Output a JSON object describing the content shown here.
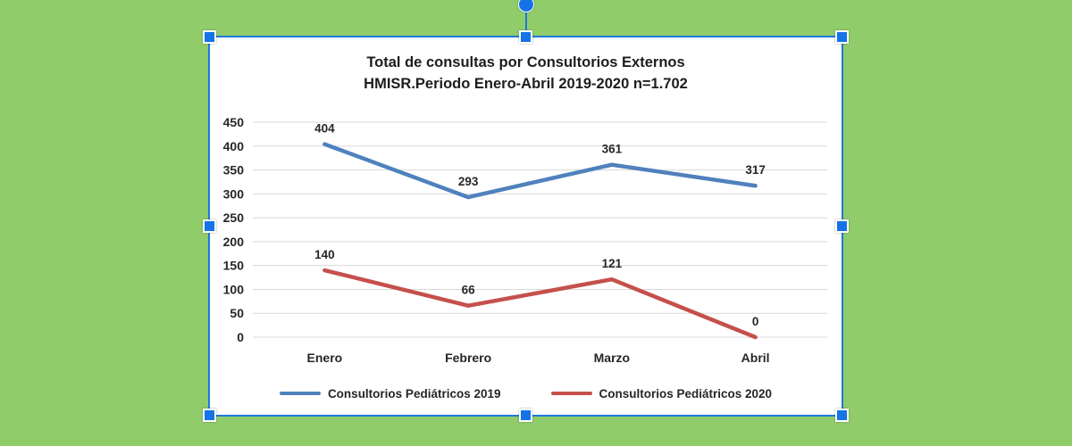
{
  "canvas": {
    "background": "#90CC69"
  },
  "selection": {
    "border_color": "#1F78DC",
    "handle_color": "#1473E6"
  },
  "chart": {
    "title_line1": "Total de consultas por Consultorios Externos",
    "title_line2": "HMISR.Periodo Enero-Abril 2019-2020 n=1.702"
  },
  "chart_data": {
    "type": "line",
    "title": "Total de consultas por Consultorios Externos HMISR.Periodo Enero-Abril 2019-2020 n=1.702",
    "categories": [
      "Enero",
      "Febrero",
      "Marzo",
      "Abril"
    ],
    "series": [
      {
        "name": "Consultorios Pediátricos 2019",
        "color": "#4F81BD",
        "values": [
          404,
          293,
          361,
          317
        ]
      },
      {
        "name": "Consultorios Pediátricos 2020",
        "color": "#C5504B",
        "values": [
          140,
          66,
          121,
          0
        ]
      }
    ],
    "xlabel": "",
    "ylabel": "",
    "ylim": [
      0,
      450
    ],
    "ytick_step": 50,
    "grid": true,
    "gridline_color": "#D9D9D9",
    "data_labels": true,
    "legend_position": "bottom"
  }
}
